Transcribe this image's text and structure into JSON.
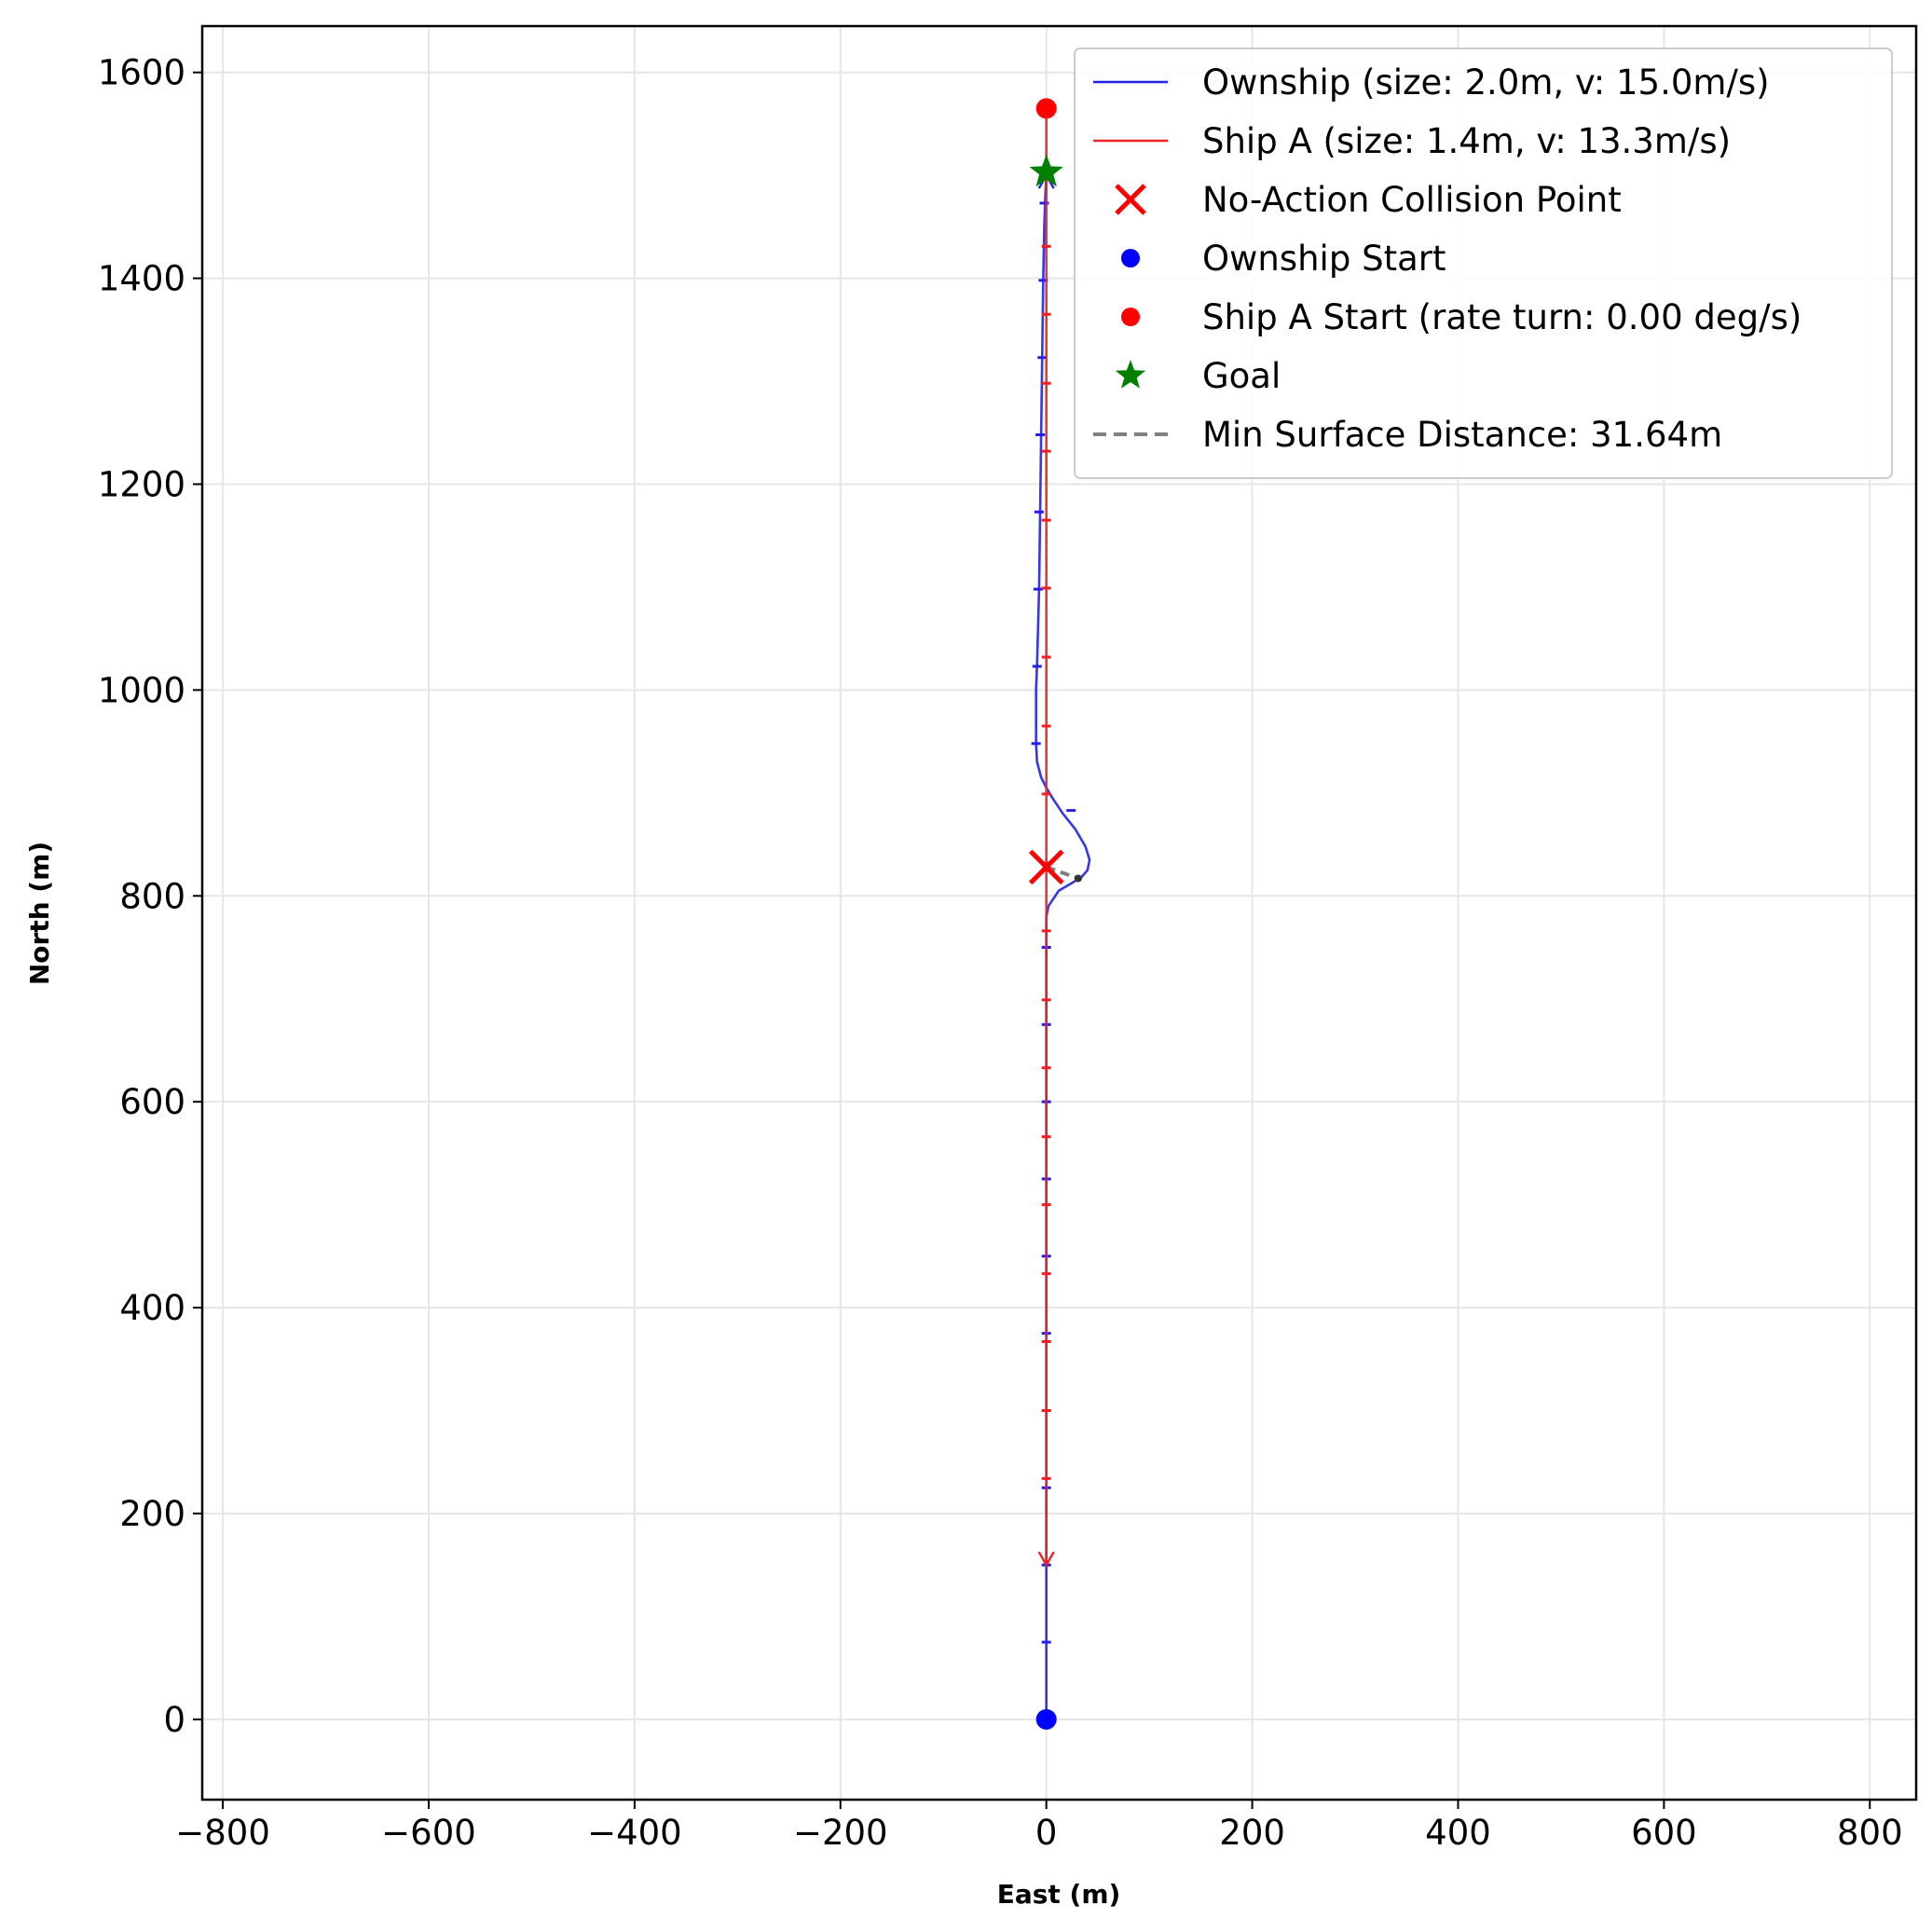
{
  "chart_data": {
    "type": "line",
    "title": "",
    "xlabel": "East (m)",
    "ylabel": "North (m)",
    "xlim": [
      -820,
      845
    ],
    "ylim": [
      -78,
      1645
    ],
    "grid": true,
    "legend_position": "top-right",
    "xticks": [
      -800,
      -600,
      -400,
      -200,
      0,
      200,
      400,
      600,
      800
    ],
    "xtick_labels": [
      "−800",
      "−600",
      "−400",
      "−200",
      "0",
      "200",
      "400",
      "600",
      "800"
    ],
    "yticks": [
      0,
      200,
      400,
      600,
      800,
      1000,
      1200,
      1400,
      1600
    ],
    "ytick_labels": [
      "0",
      "200",
      "400",
      "600",
      "800",
      "1000",
      "1200",
      "1400",
      "1600"
    ],
    "series": [
      {
        "name": "Ownship (size: 2.0m, v: 15.0m/s)",
        "color": "#2020e8",
        "x": [
          0,
          0,
          0,
          0,
          0,
          0,
          0,
          0,
          0,
          0,
          0,
          0,
          0,
          0,
          0,
          0,
          0,
          2,
          12,
          24,
          34,
          40,
          42,
          38,
          28,
          16,
          6,
          0,
          -5,
          -9,
          -10,
          -10,
          -9,
          -7,
          -6,
          -5,
          -4,
          -3,
          -2,
          -1,
          0
        ],
        "y": [
          0,
          75,
          150,
          225,
          300,
          375,
          450,
          525,
          600,
          675,
          700,
          725,
          740,
          750,
          760,
          770,
          780,
          790,
          805,
          812,
          818,
          825,
          835,
          848,
          865,
          880,
          895,
          905,
          915,
          930,
          948,
          1000,
          1025,
          1100,
          1175,
          1250,
          1325,
          1400,
          1450,
          1480,
          1500
        ],
        "tick_marks": [
          [
            0,
            75
          ],
          [
            0,
            150
          ],
          [
            0,
            225
          ],
          [
            0,
            300
          ],
          [
            0,
            375
          ],
          [
            0,
            450
          ],
          [
            0,
            525
          ],
          [
            0,
            600
          ],
          [
            0,
            675
          ],
          [
            0,
            750
          ],
          [
            24,
            883
          ],
          [
            -10,
            948
          ],
          [
            -9,
            1023
          ],
          [
            -8,
            1098
          ],
          [
            -7,
            1173
          ],
          [
            -6,
            1248
          ],
          [
            -4,
            1323
          ],
          [
            -3,
            1398
          ],
          [
            -2,
            1473
          ]
        ]
      },
      {
        "name": "Ship A (size: 1.4m, v: 13.3m/s)",
        "color": "#f02020",
        "x": [
          0,
          0
        ],
        "y": [
          1565,
          150
        ],
        "tick_marks": [
          [
            0,
            1431
          ],
          [
            0,
            1365
          ],
          [
            0,
            1298
          ],
          [
            0,
            1232
          ],
          [
            0,
            1165
          ],
          [
            0,
            1099
          ],
          [
            0,
            1032
          ],
          [
            0,
            965
          ],
          [
            0,
            899
          ],
          [
            0,
            832
          ],
          [
            0,
            766
          ],
          [
            0,
            699
          ],
          [
            0,
            633
          ],
          [
            0,
            566
          ],
          [
            0,
            500
          ],
          [
            0,
            433
          ],
          [
            0,
            367
          ],
          [
            0,
            300
          ],
          [
            0,
            234
          ]
        ]
      }
    ],
    "markers": [
      {
        "name": "No-Action Collision Point",
        "x": 0,
        "y": 828,
        "color": "#ff0000",
        "symbol": "x"
      },
      {
        "name": "Ownship Start",
        "x": 0,
        "y": 0,
        "color": "#0000ff",
        "symbol": "circle"
      },
      {
        "name": "Ship A Start (rate turn: 0.00 deg/s)",
        "x": 0,
        "y": 1565,
        "color": "#ff0000",
        "symbol": "circle"
      },
      {
        "name": "Goal",
        "x": 0,
        "y": 1503,
        "color": "#008000",
        "symbol": "star"
      }
    ],
    "min_distance": {
      "name": "Min Surface Distance: 31.64m",
      "color": "#808080",
      "x": [
        0,
        31
      ],
      "y": [
        828,
        817
      ]
    },
    "legend": [
      {
        "label": "Ownship (size: 2.0m, v: 15.0m/s)",
        "kind": "line",
        "color": "#2020e8"
      },
      {
        "label": "Ship A (size: 1.4m, v: 13.3m/s)",
        "kind": "line",
        "color": "#f02020"
      },
      {
        "label": "No-Action Collision Point",
        "kind": "x",
        "color": "#ff0000"
      },
      {
        "label": "Ownship Start",
        "kind": "circle",
        "color": "#0000ff"
      },
      {
        "label": "Ship A Start (rate turn: 0.00 deg/s)",
        "kind": "circle",
        "color": "#ff0000"
      },
      {
        "label": "Goal",
        "kind": "star",
        "color": "#008000"
      },
      {
        "label": "Min Surface Distance: 31.64m",
        "kind": "dash",
        "color": "#808080"
      }
    ]
  }
}
